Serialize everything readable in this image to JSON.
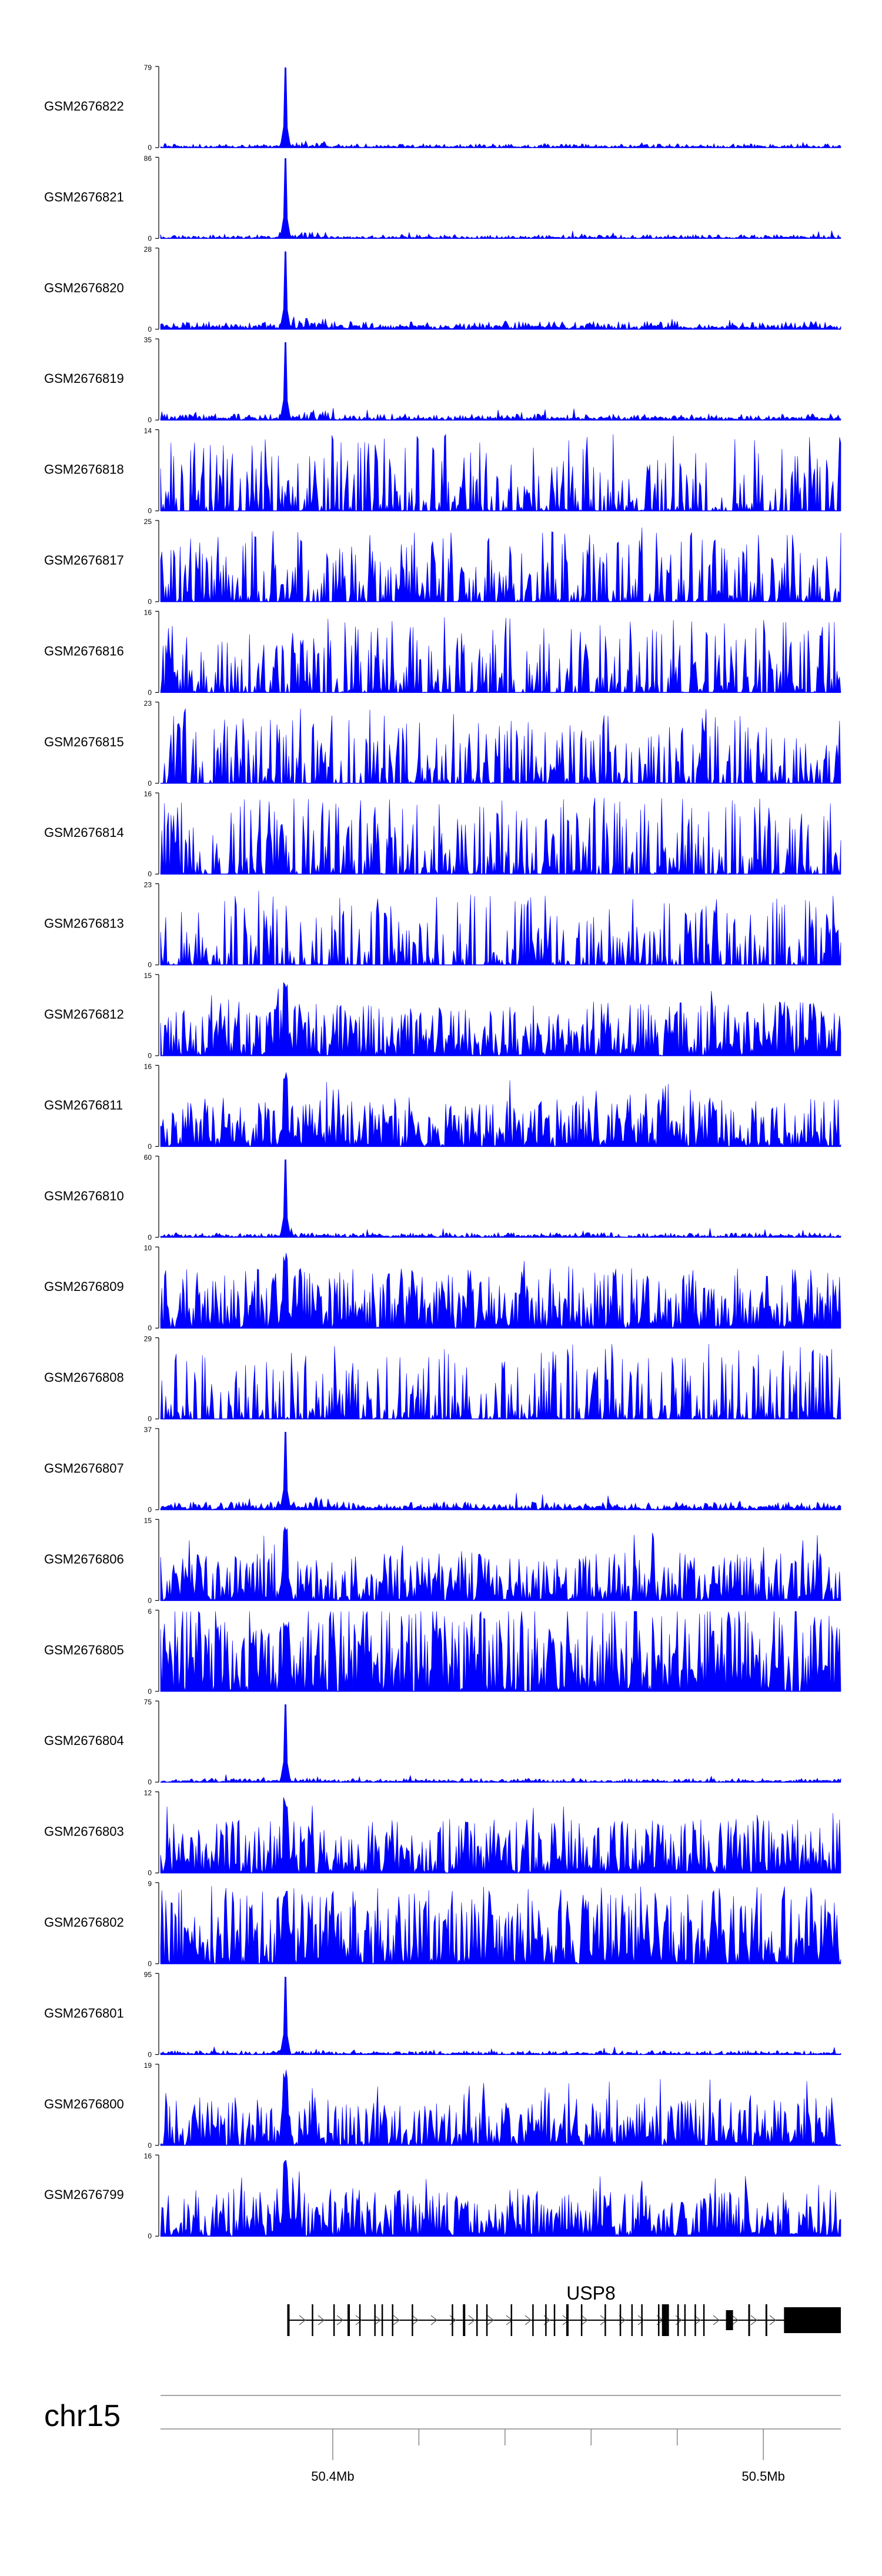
{
  "chart_data": {
    "type": "area",
    "title": "",
    "xlabel": "",
    "ylabel": "",
    "x_axis": {
      "chromosome": "chr15",
      "xlim_mb": [
        50.36,
        50.518
      ],
      "tick_labels": [
        {
          "mb": 50.4,
          "label": "50.4Mb"
        },
        {
          "mb": 50.5,
          "label": "50.5Mb"
        }
      ],
      "minor_ticks_mb": [
        50.4,
        50.42,
        50.44,
        50.46,
        50.48,
        50.5
      ]
    },
    "peak_center_mb": 50.389,
    "tracks": [
      {
        "name": "GSM2676822",
        "ymax": 79,
        "ymin": 0,
        "peak": 1.0,
        "background": 0.05,
        "pattern": "peak"
      },
      {
        "name": "GSM2676821",
        "ymax": 86,
        "ymin": 0,
        "peak": 1.0,
        "background": 0.05,
        "pattern": "peak"
      },
      {
        "name": "GSM2676820",
        "ymax": 28,
        "ymin": 0,
        "peak": 0.97,
        "background": 0.1,
        "pattern": "peak"
      },
      {
        "name": "GSM2676819",
        "ymax": 35,
        "ymin": 0,
        "peak": 0.97,
        "background": 0.08,
        "pattern": "peak"
      },
      {
        "name": "GSM2676818",
        "ymax": 14,
        "ymin": 0,
        "peak": 0.7,
        "background": 0.6,
        "pattern": "sparse"
      },
      {
        "name": "GSM2676817",
        "ymax": 25,
        "ymin": 0,
        "peak": 0.5,
        "background": 0.55,
        "pattern": "sparse"
      },
      {
        "name": "GSM2676816",
        "ymax": 16,
        "ymin": 0,
        "peak": 0.6,
        "background": 0.6,
        "pattern": "sparse"
      },
      {
        "name": "GSM2676815",
        "ymax": 23,
        "ymin": 0,
        "peak": 0.5,
        "background": 0.55,
        "pattern": "sparse"
      },
      {
        "name": "GSM2676814",
        "ymax": 16,
        "ymin": 0,
        "peak": 0.55,
        "background": 0.6,
        "pattern": "sparse"
      },
      {
        "name": "GSM2676813",
        "ymax": 23,
        "ymin": 0,
        "peak": 0.5,
        "background": 0.55,
        "pattern": "sparse"
      },
      {
        "name": "GSM2676812",
        "ymax": 15,
        "ymin": 0,
        "peak": 0.95,
        "background": 0.45,
        "pattern": "dense"
      },
      {
        "name": "GSM2676811",
        "ymax": 16,
        "ymin": 0,
        "peak": 0.95,
        "background": 0.4,
        "pattern": "dense"
      },
      {
        "name": "GSM2676810",
        "ymax": 60,
        "ymin": 0,
        "peak": 0.97,
        "background": 0.06,
        "pattern": "peak"
      },
      {
        "name": "GSM2676809",
        "ymax": 10,
        "ymin": 0,
        "peak": 0.95,
        "background": 0.5,
        "pattern": "dense"
      },
      {
        "name": "GSM2676808",
        "ymax": 29,
        "ymin": 0,
        "peak": 0.7,
        "background": 0.55,
        "pattern": "sparse"
      },
      {
        "name": "GSM2676807",
        "ymax": 37,
        "ymin": 0,
        "peak": 0.97,
        "background": 0.1,
        "pattern": "peak"
      },
      {
        "name": "GSM2676806",
        "ymax": 15,
        "ymin": 0,
        "peak": 0.95,
        "background": 0.4,
        "pattern": "dense"
      },
      {
        "name": "GSM2676805",
        "ymax": 6,
        "ymin": 0,
        "peak": 0.9,
        "background": 0.75,
        "pattern": "dense"
      },
      {
        "name": "GSM2676804",
        "ymax": 75,
        "ymin": 0,
        "peak": 0.97,
        "background": 0.05,
        "pattern": "peak"
      },
      {
        "name": "GSM2676803",
        "ymax": 12,
        "ymin": 0,
        "peak": 0.95,
        "background": 0.45,
        "pattern": "dense"
      },
      {
        "name": "GSM2676802",
        "ymax": 9,
        "ymin": 0,
        "peak": 0.95,
        "background": 0.65,
        "pattern": "dense"
      },
      {
        "name": "GSM2676801",
        "ymax": 95,
        "ymin": 0,
        "peak": 0.97,
        "background": 0.05,
        "pattern": "peak"
      },
      {
        "name": "GSM2676800",
        "ymax": 19,
        "ymin": 0,
        "peak": 0.95,
        "background": 0.4,
        "pattern": "dense"
      },
      {
        "name": "GSM2676799",
        "ymax": 16,
        "ymin": 0,
        "peak": 0.95,
        "background": 0.4,
        "pattern": "dense"
      }
    ],
    "gene": {
      "name": "USP8",
      "strand": "+",
      "start_mb": 50.3895,
      "end_mb": 50.518,
      "exons_mb": [
        50.3897,
        50.3953,
        50.4003,
        50.4037,
        50.4063,
        50.4098,
        50.4115,
        50.4139,
        50.4185,
        50.4278,
        50.4305,
        50.4335,
        50.4358,
        50.4415,
        50.4465,
        50.4495,
        50.4515,
        50.4545,
        50.4578,
        50.4633,
        50.4668,
        50.4695,
        50.4718,
        50.4757,
        50.4778,
        50.4802,
        50.4818,
        50.4842,
        50.4862
      ],
      "utr3_mb": [
        50.5048,
        50.518
      ]
    },
    "colors": {
      "signal": "#0000ff",
      "axis": "#000000",
      "gene": "#000000",
      "arrow": "#555555",
      "ideogram_line": "#888888"
    }
  }
}
